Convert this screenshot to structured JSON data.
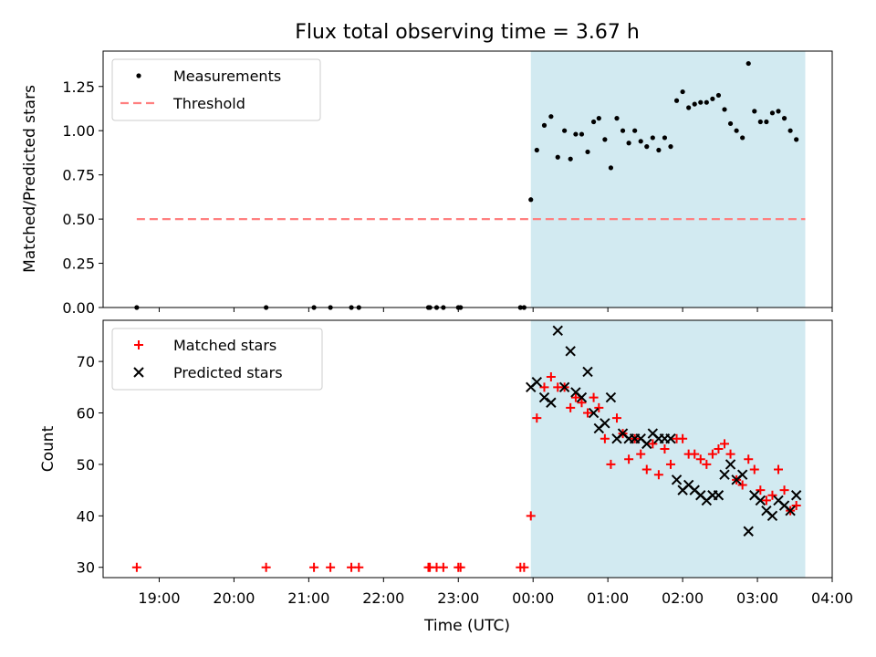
{
  "title": "Flux total observing time = 3.67 h",
  "xlabel": "Time (UTC)",
  "x_ticks": [
    "19:00",
    "20:00",
    "21:00",
    "22:00",
    "23:00",
    "00:00",
    "01:00",
    "02:00",
    "03:00",
    "04:00"
  ],
  "colors": {
    "measurement": "#000000",
    "threshold": "#ff7f7f",
    "matched": "#ff0000",
    "predicted": "#000000",
    "observing_span": "#add8e6"
  },
  "chart_data": [
    {
      "type": "scatter",
      "name": "top",
      "ylabel": "Matched/Predicted stars",
      "x_unit": "hours since 00:00 UTC",
      "xlim": [
        -5.75,
        4.0
      ],
      "ylim": [
        0.0,
        1.45
      ],
      "y_ticks": [
        "0.00",
        "0.25",
        "0.50",
        "0.75",
        "1.00",
        "1.25"
      ],
      "legend": {
        "position": "upper-left",
        "entries": [
          "Measurements",
          "Threshold"
        ]
      },
      "shaded_span": [
        -0.03,
        3.64
      ],
      "threshold": {
        "name": "Threshold",
        "y": 0.5,
        "x": [
          -5.3,
          3.64
        ]
      },
      "series": [
        {
          "name": "Measurements",
          "points": [
            [
              -5.3,
              0
            ],
            [
              -3.57,
              0
            ],
            [
              -2.93,
              0
            ],
            [
              -2.71,
              0
            ],
            [
              -2.43,
              0
            ],
            [
              -2.33,
              0
            ],
            [
              -1.4,
              0
            ],
            [
              -1.38,
              0
            ],
            [
              -1.29,
              0
            ],
            [
              -1.2,
              0
            ],
            [
              -1.0,
              0
            ],
            [
              -0.97,
              0
            ],
            [
              -0.17,
              0
            ],
            [
              -0.12,
              0
            ],
            [
              -0.03,
              0.61
            ],
            [
              0.05,
              0.89
            ],
            [
              0.15,
              1.03
            ],
            [
              0.24,
              1.08
            ],
            [
              0.33,
              0.85
            ],
            [
              0.42,
              1.0
            ],
            [
              0.5,
              0.84
            ],
            [
              0.57,
              0.98
            ],
            [
              0.65,
              0.98
            ],
            [
              0.73,
              0.88
            ],
            [
              0.81,
              1.05
            ],
            [
              0.88,
              1.07
            ],
            [
              0.96,
              0.95
            ],
            [
              1.04,
              0.79
            ],
            [
              1.12,
              1.07
            ],
            [
              1.2,
              1.0
            ],
            [
              1.28,
              0.93
            ],
            [
              1.36,
              1.0
            ],
            [
              1.44,
              0.94
            ],
            [
              1.52,
              0.91
            ],
            [
              1.6,
              0.96
            ],
            [
              1.68,
              0.89
            ],
            [
              1.76,
              0.96
            ],
            [
              1.84,
              0.91
            ],
            [
              1.92,
              1.17
            ],
            [
              2.0,
              1.22
            ],
            [
              2.08,
              1.13
            ],
            [
              2.16,
              1.15
            ],
            [
              2.24,
              1.16
            ],
            [
              2.32,
              1.16
            ],
            [
              2.4,
              1.18
            ],
            [
              2.48,
              1.2
            ],
            [
              2.56,
              1.12
            ],
            [
              2.64,
              1.04
            ],
            [
              2.72,
              1.0
            ],
            [
              2.8,
              0.96
            ],
            [
              2.88,
              1.38
            ],
            [
              2.96,
              1.11
            ],
            [
              3.04,
              1.05
            ],
            [
              3.12,
              1.05
            ],
            [
              3.2,
              1.1
            ],
            [
              3.28,
              1.11
            ],
            [
              3.36,
              1.07
            ],
            [
              3.44,
              1.0
            ],
            [
              3.52,
              0.95
            ]
          ]
        }
      ]
    },
    {
      "type": "scatter",
      "name": "bottom",
      "ylabel": "Count",
      "x_unit": "hours since 00:00 UTC",
      "xlim": [
        -5.75,
        4.0
      ],
      "ylim": [
        28,
        78
      ],
      "y_ticks": [
        "30",
        "40",
        "50",
        "60",
        "70"
      ],
      "legend": {
        "position": "upper-left",
        "entries": [
          "Matched stars",
          "Predicted stars"
        ]
      },
      "shaded_span": [
        -0.03,
        3.64
      ],
      "series": [
        {
          "name": "Matched stars",
          "marker": "plus",
          "points": [
            [
              -5.3,
              30
            ],
            [
              -3.57,
              30
            ],
            [
              -2.93,
              30
            ],
            [
              -2.71,
              30
            ],
            [
              -2.43,
              30
            ],
            [
              -2.33,
              30
            ],
            [
              -1.4,
              30
            ],
            [
              -1.38,
              30
            ],
            [
              -1.29,
              30
            ],
            [
              -1.2,
              30
            ],
            [
              -1.0,
              30
            ],
            [
              -0.97,
              30
            ],
            [
              -0.17,
              30
            ],
            [
              -0.12,
              30
            ],
            [
              -0.03,
              40
            ],
            [
              0.05,
              59
            ],
            [
              0.15,
              65
            ],
            [
              0.24,
              67
            ],
            [
              0.33,
              65
            ],
            [
              0.42,
              65
            ],
            [
              0.5,
              61
            ],
            [
              0.57,
              63
            ],
            [
              0.65,
              62
            ],
            [
              0.73,
              60
            ],
            [
              0.81,
              63
            ],
            [
              0.88,
              61
            ],
            [
              0.96,
              55
            ],
            [
              1.04,
              50
            ],
            [
              1.12,
              59
            ],
            [
              1.2,
              56
            ],
            [
              1.28,
              51
            ],
            [
              1.36,
              55
            ],
            [
              1.44,
              52
            ],
            [
              1.52,
              49
            ],
            [
              1.6,
              54
            ],
            [
              1.68,
              48
            ],
            [
              1.76,
              53
            ],
            [
              1.84,
              50
            ],
            [
              1.92,
              55
            ],
            [
              2.0,
              55
            ],
            [
              2.08,
              52
            ],
            [
              2.16,
              52
            ],
            [
              2.24,
              51
            ],
            [
              2.32,
              50
            ],
            [
              2.4,
              52
            ],
            [
              2.48,
              53
            ],
            [
              2.56,
              54
            ],
            [
              2.64,
              52
            ],
            [
              2.72,
              47
            ],
            [
              2.8,
              46
            ],
            [
              2.88,
              51
            ],
            [
              2.96,
              49
            ],
            [
              3.04,
              45
            ],
            [
              3.12,
              43
            ],
            [
              3.2,
              44
            ],
            [
              3.28,
              49
            ],
            [
              3.36,
              45
            ],
            [
              3.44,
              41
            ],
            [
              3.52,
              42
            ]
          ]
        },
        {
          "name": "Predicted stars",
          "marker": "x",
          "points": [
            [
              -0.03,
              65
            ],
            [
              0.05,
              66
            ],
            [
              0.15,
              63
            ],
            [
              0.24,
              62
            ],
            [
              0.33,
              76
            ],
            [
              0.42,
              65
            ],
            [
              0.5,
              72
            ],
            [
              0.57,
              64
            ],
            [
              0.65,
              63
            ],
            [
              0.73,
              68
            ],
            [
              0.81,
              60
            ],
            [
              0.88,
              57
            ],
            [
              0.96,
              58
            ],
            [
              1.04,
              63
            ],
            [
              1.12,
              55
            ],
            [
              1.2,
              56
            ],
            [
              1.28,
              55
            ],
            [
              1.36,
              55
            ],
            [
              1.44,
              55
            ],
            [
              1.52,
              54
            ],
            [
              1.6,
              56
            ],
            [
              1.68,
              55
            ],
            [
              1.76,
              55
            ],
            [
              1.84,
              55
            ],
            [
              1.92,
              47
            ],
            [
              2.0,
              45
            ],
            [
              2.08,
              46
            ],
            [
              2.16,
              45
            ],
            [
              2.24,
              44
            ],
            [
              2.32,
              43
            ],
            [
              2.4,
              44
            ],
            [
              2.48,
              44
            ],
            [
              2.56,
              48
            ],
            [
              2.64,
              50
            ],
            [
              2.72,
              47
            ],
            [
              2.8,
              48
            ],
            [
              2.88,
              37
            ],
            [
              2.96,
              44
            ],
            [
              3.04,
              43
            ],
            [
              3.12,
              41
            ],
            [
              3.2,
              40
            ],
            [
              3.28,
              43
            ],
            [
              3.36,
              42
            ],
            [
              3.44,
              41
            ],
            [
              3.52,
              44
            ]
          ]
        }
      ]
    }
  ]
}
